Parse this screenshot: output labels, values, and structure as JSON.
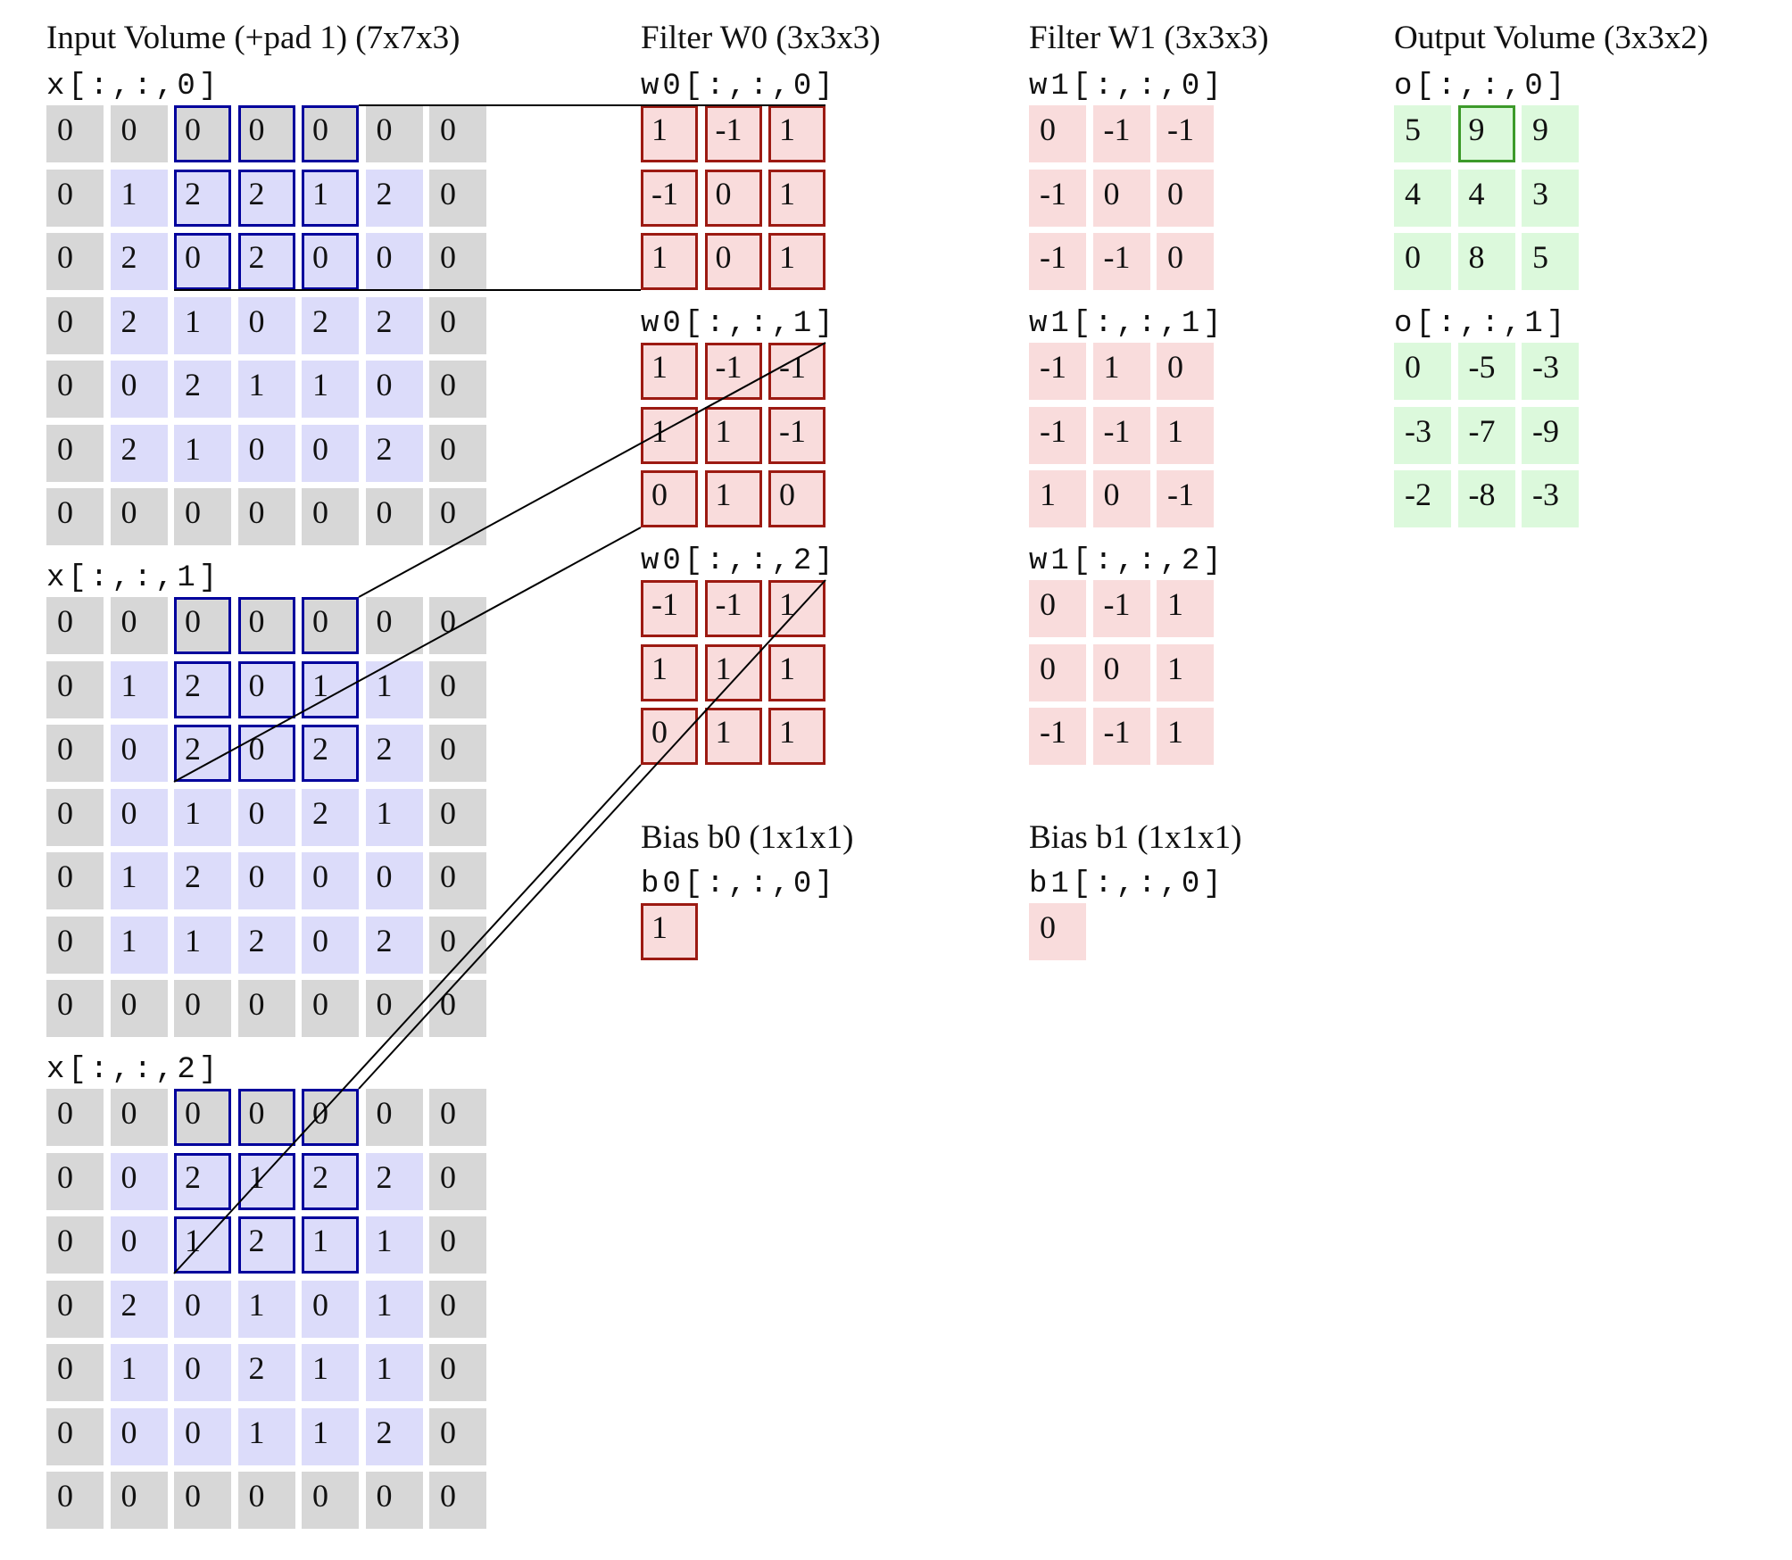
{
  "titles": {
    "input": "Input Volume (+pad 1) (7x7x3)",
    "filter_w0": "Filter W0 (3x3x3)",
    "filter_w1": "Filter W1 (3x3x3)",
    "output": "Output Volume (3x3x2)",
    "bias_b0": "Bias b0 (1x1x1)",
    "bias_b1": "Bias b1 (1x1x1)"
  },
  "input": {
    "slices": [
      {
        "label": "x[:,:,0]",
        "grid": [
          [
            "0",
            "0",
            "0",
            "0",
            "0",
            "0",
            "0"
          ],
          [
            "0",
            "1",
            "2",
            "2",
            "1",
            "2",
            "0"
          ],
          [
            "0",
            "2",
            "0",
            "2",
            "0",
            "0",
            "0"
          ],
          [
            "0",
            "2",
            "1",
            "0",
            "2",
            "2",
            "0"
          ],
          [
            "0",
            "0",
            "2",
            "1",
            "1",
            "0",
            "0"
          ],
          [
            "0",
            "2",
            "1",
            "0",
            "0",
            "2",
            "0"
          ],
          [
            "0",
            "0",
            "0",
            "0",
            "0",
            "0",
            "0"
          ]
        ]
      },
      {
        "label": "x[:,:,1]",
        "grid": [
          [
            "0",
            "0",
            "0",
            "0",
            "0",
            "0",
            "0"
          ],
          [
            "0",
            "1",
            "2",
            "0",
            "1",
            "1",
            "0"
          ],
          [
            "0",
            "0",
            "2",
            "0",
            "2",
            "2",
            "0"
          ],
          [
            "0",
            "0",
            "1",
            "0",
            "2",
            "1",
            "0"
          ],
          [
            "0",
            "1",
            "2",
            "0",
            "0",
            "0",
            "0"
          ],
          [
            "0",
            "1",
            "1",
            "2",
            "0",
            "2",
            "0"
          ],
          [
            "0",
            "0",
            "0",
            "0",
            "0",
            "0",
            "0"
          ]
        ]
      },
      {
        "label": "x[:,:,2]",
        "grid": [
          [
            "0",
            "0",
            "0",
            "0",
            "0",
            "0",
            "0"
          ],
          [
            "0",
            "0",
            "2",
            "1",
            "2",
            "2",
            "0"
          ],
          [
            "0",
            "0",
            "1",
            "2",
            "1",
            "1",
            "0"
          ],
          [
            "0",
            "2",
            "0",
            "1",
            "0",
            "1",
            "0"
          ],
          [
            "0",
            "1",
            "0",
            "2",
            "1",
            "1",
            "0"
          ],
          [
            "0",
            "0",
            "0",
            "1",
            "1",
            "2",
            "0"
          ],
          [
            "0",
            "0",
            "0",
            "0",
            "0",
            "0",
            "0"
          ]
        ]
      }
    ]
  },
  "w0": {
    "slices": [
      {
        "label": "w0[:,:,0]",
        "grid": [
          [
            "1",
            "-1",
            "1"
          ],
          [
            "-1",
            "0",
            "1"
          ],
          [
            "1",
            "0",
            "1"
          ]
        ]
      },
      {
        "label": "w0[:,:,1]",
        "grid": [
          [
            "1",
            "-1",
            "-1"
          ],
          [
            "1",
            "1",
            "-1"
          ],
          [
            "0",
            "1",
            "0"
          ]
        ]
      },
      {
        "label": "w0[:,:,2]",
        "grid": [
          [
            "-1",
            "-1",
            "1"
          ],
          [
            "1",
            "1",
            "1"
          ],
          [
            "0",
            "1",
            "1"
          ]
        ]
      }
    ],
    "bias_label": "b0[:,:,0]",
    "bias_value": "1"
  },
  "w1": {
    "slices": [
      {
        "label": "w1[:,:,0]",
        "grid": [
          [
            "0",
            "-1",
            "-1"
          ],
          [
            "-1",
            "0",
            "0"
          ],
          [
            "-1",
            "-1",
            "0"
          ]
        ]
      },
      {
        "label": "w1[:,:,1]",
        "grid": [
          [
            "-1",
            "1",
            "0"
          ],
          [
            "-1",
            "-1",
            "1"
          ],
          [
            "1",
            "0",
            "-1"
          ]
        ]
      },
      {
        "label": "w1[:,:,2]",
        "grid": [
          [
            "0",
            "-1",
            "1"
          ],
          [
            "0",
            "0",
            "1"
          ],
          [
            "-1",
            "-1",
            "1"
          ]
        ]
      }
    ],
    "bias_label": "b1[:,:,0]",
    "bias_value": "0"
  },
  "output": {
    "slices": [
      {
        "label": "o[:,:,0]",
        "grid": [
          [
            "5",
            "9",
            "9"
          ],
          [
            "4",
            "4",
            "3"
          ],
          [
            "0",
            "8",
            "5"
          ]
        ]
      },
      {
        "label": "o[:,:,1]",
        "grid": [
          [
            "0",
            "-5",
            "-3"
          ],
          [
            "-3",
            "-7",
            "-9"
          ],
          [
            "-2",
            "-8",
            "-3"
          ]
        ]
      }
    ]
  },
  "highlight": {
    "input_row": 0,
    "input_col": 2,
    "output_slice": 0,
    "output_row": 0,
    "output_col": 1
  },
  "colors": {
    "pad": "#d7d7d7",
    "inner": "#dcdcfa",
    "weight": "#f9dcdc",
    "output": "#dcf9dc",
    "input_highlight": "#00009c",
    "weight_highlight": "#9c1a12",
    "output_highlight": "#3d9a2a"
  }
}
